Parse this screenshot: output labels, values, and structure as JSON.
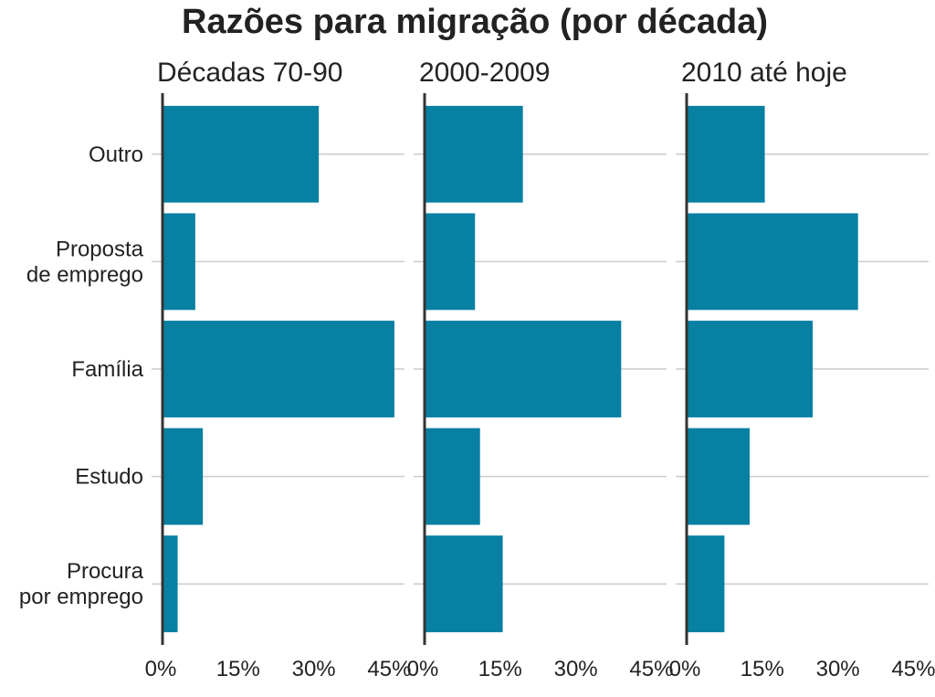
{
  "colors": {
    "bar": "#0780a2",
    "gridline": "#cccccc",
    "axis": "#333333",
    "text": "#222222"
  },
  "chart_data": {
    "type": "bar",
    "orientation": "horizontal",
    "title": "Razões para migração (por década)",
    "categories": [
      "Outro",
      "Proposta de emprego",
      "Família",
      "Estudo",
      "Procura por emprego"
    ],
    "category_labels": [
      [
        "Outro"
      ],
      [
        "Proposta",
        "de emprego"
      ],
      [
        "Família"
      ],
      [
        "Estudo"
      ],
      [
        "Procura",
        "por emprego"
      ]
    ],
    "x_ticks": [
      0,
      15,
      30,
      45
    ],
    "x_tick_labels": [
      "0%",
      "15%",
      "30%",
      "45%"
    ],
    "xlim": [
      0,
      48
    ],
    "panels": [
      {
        "name": "Décadas 70-90",
        "values": [
          31,
          6.5,
          46,
          8,
          3
        ]
      },
      {
        "name": "2000-2009",
        "values": [
          19.5,
          10,
          39,
          11,
          15.5
        ]
      },
      {
        "name": "2010 até hoje",
        "values": [
          15.5,
          34,
          25,
          12.5,
          7.5
        ]
      }
    ]
  }
}
